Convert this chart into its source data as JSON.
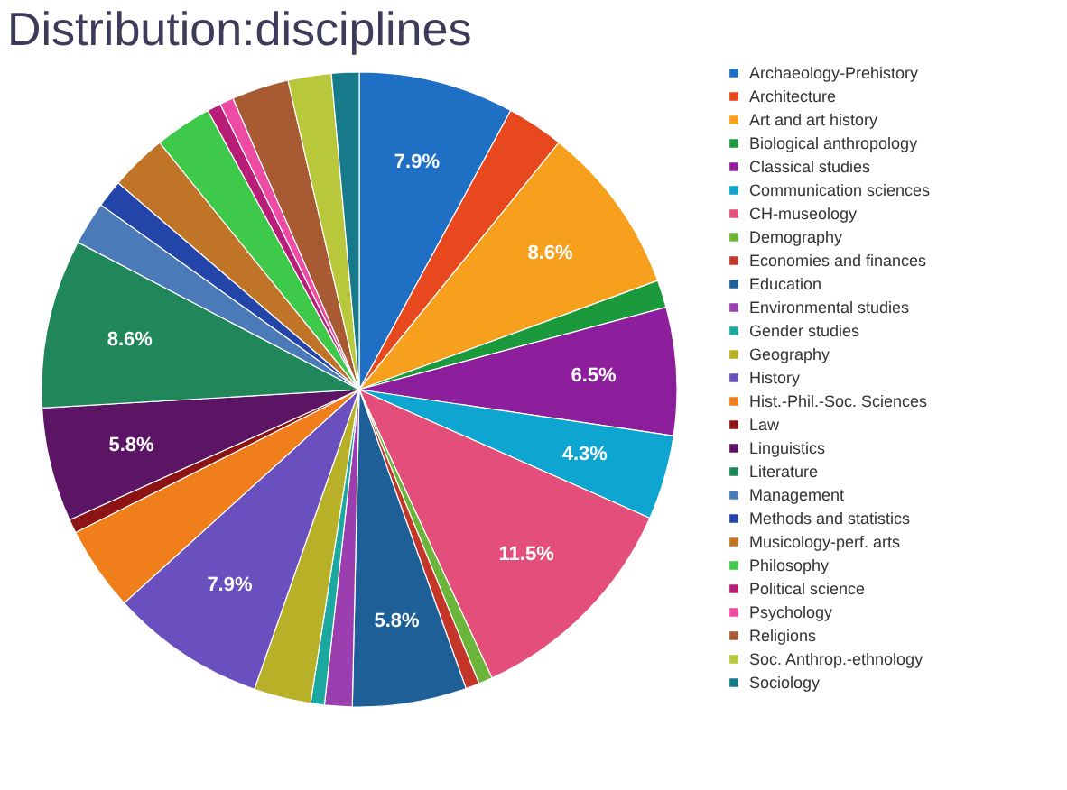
{
  "chart_data": {
    "type": "pie",
    "title": "Distribution:disciplines",
    "categories": [
      "Archaeology-Prehistory",
      "Architecture",
      "Art and art history",
      "Biological anthropology",
      "Classical studies",
      "Communication sciences",
      "CH-museology",
      "Demography",
      "Economies and finances",
      "Education",
      "Environmental studies",
      "Gender studies",
      "Geography",
      "History",
      "Hist.-Phil.-Soc. Sciences",
      "Law",
      "Linguistics",
      "Literature",
      "Management",
      "Methods and statistics",
      "Musicology-perf. arts",
      "Philosophy",
      "Political science",
      "Psychology",
      "Religions",
      "Soc. Anthrop.-ethnology",
      "Sociology"
    ],
    "values": [
      7.9,
      2.9,
      8.6,
      1.4,
      6.5,
      4.3,
      11.5,
      0.7,
      0.7,
      5.8,
      1.4,
      0.7,
      2.9,
      7.9,
      4.3,
      0.7,
      5.8,
      8.6,
      2.2,
      1.4,
      2.9,
      2.9,
      0.7,
      0.7,
      2.9,
      2.2,
      1.4
    ],
    "value_labels": [
      "7.9%",
      null,
      "8.6%",
      null,
      "6.5%",
      "4.3%",
      "11.5%",
      null,
      null,
      "5.8%",
      null,
      null,
      null,
      "7.9%",
      null,
      null,
      "5.8%",
      "8.6%",
      null,
      null,
      null,
      null,
      null,
      null,
      null,
      null,
      null
    ],
    "colors": [
      "#1f6fc5",
      "#e8481e",
      "#f7a01e",
      "#1a9a3c",
      "#8e1f9c",
      "#0ea5d0",
      "#e34e7a",
      "#6ab53a",
      "#c4352a",
      "#1e5f98",
      "#9b3fb0",
      "#1ba8a0",
      "#b8b027",
      "#6a4fbf",
      "#f07e1a",
      "#8c1414",
      "#5c1565",
      "#20875a",
      "#4a7ab8",
      "#2344a8",
      "#c07428",
      "#3ec94a",
      "#b81e78",
      "#ee4ca4",
      "#a85a32",
      "#b8c83a",
      "#177a8a"
    ],
    "legend": "right"
  }
}
